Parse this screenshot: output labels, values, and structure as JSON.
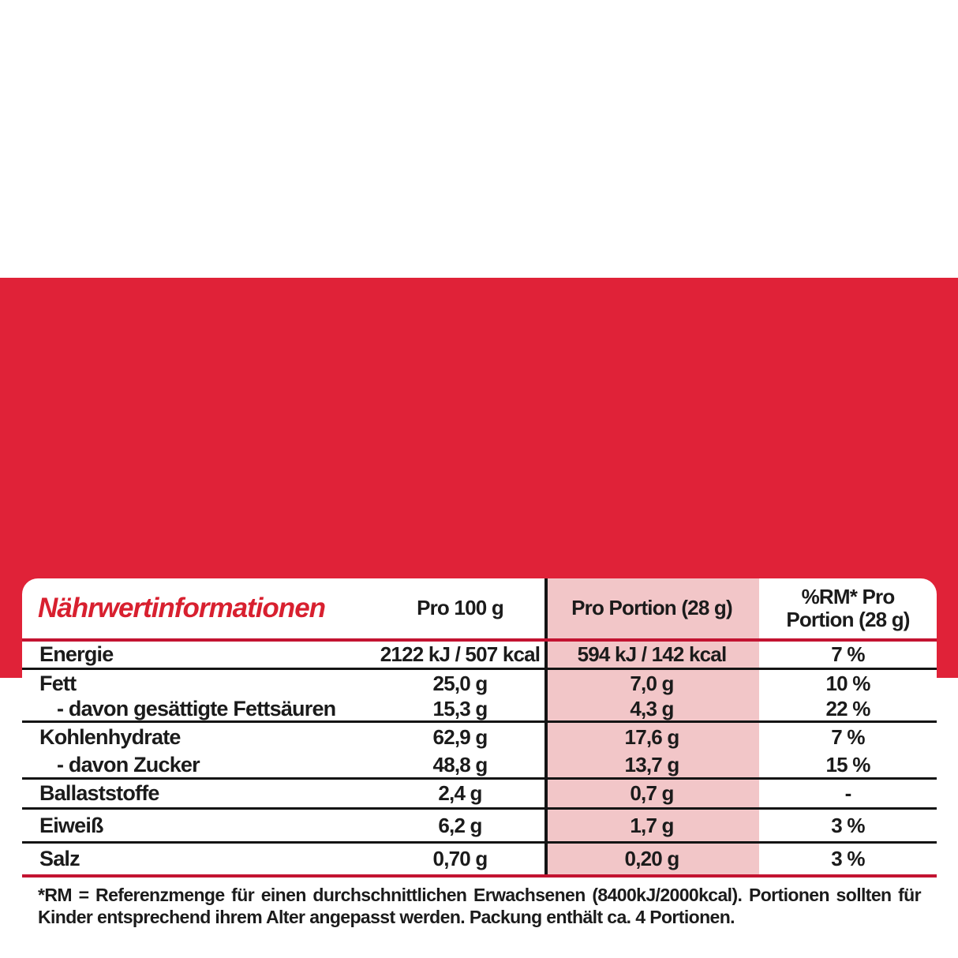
{
  "colors": {
    "band_red": "#e02238",
    "title_red": "#d8202f",
    "separator_red": "#c31331",
    "separator_black": "#141414",
    "portion_column_pink": "#f2c6c8",
    "text_black": "#1b1b1b"
  },
  "table": {
    "title": "Nährwertinformationen",
    "columns": {
      "per100": "Pro 100 g",
      "portion": "Pro Portion (28 g)",
      "rm_line1": "%RM* Pro",
      "rm_line2": "Portion (28 g)"
    },
    "rows": [
      {
        "key": "energie",
        "label": "Energie",
        "indent": false,
        "per100": "2122 kJ / 507 kcal",
        "portion": "594 kJ / 142 kcal",
        "rm": "7 %",
        "divider": "black"
      },
      {
        "key": "fett",
        "label": "Fett",
        "indent": false,
        "per100": "25,0 g",
        "portion": "7,0 g",
        "rm": "10 %",
        "divider": "none"
      },
      {
        "key": "fettsaeuren",
        "label": "- davon gesättigte Fettsäuren",
        "indent": true,
        "per100": "15,3 g",
        "portion": "4,3 g",
        "rm": "22 %",
        "divider": "black"
      },
      {
        "key": "kohlenhydrate",
        "label": "Kohlenhydrate",
        "indent": false,
        "per100": "62,9 g",
        "portion": "17,6 g",
        "rm": "7 %",
        "divider": "none"
      },
      {
        "key": "zucker",
        "label": "- davon Zucker",
        "indent": true,
        "per100": "48,8 g",
        "portion": "13,7 g",
        "rm": "15 %",
        "divider": "black"
      },
      {
        "key": "ballaststoffe",
        "label": "Ballaststoffe",
        "indent": false,
        "per100": "2,4 g",
        "portion": "0,7 g",
        "rm": "-",
        "divider": "black"
      },
      {
        "key": "eiweiss",
        "label": "Eiweiß",
        "indent": false,
        "per100": "6,2 g",
        "portion": "1,7 g",
        "rm": "3 %",
        "divider": "black"
      },
      {
        "key": "salz",
        "label": "Salz",
        "indent": false,
        "per100": "0,70 g",
        "portion": "0,20 g",
        "rm": "3 %",
        "divider": "red"
      }
    ],
    "footnote": "*RM = Referenzmenge für einen durchschnittlichen Erwachsenen (8400kJ/2000kcal). Portionen sollten für Kinder entsprechend ihrem Alter angepasst werden. Packung enthält ca. 4 Portionen."
  }
}
